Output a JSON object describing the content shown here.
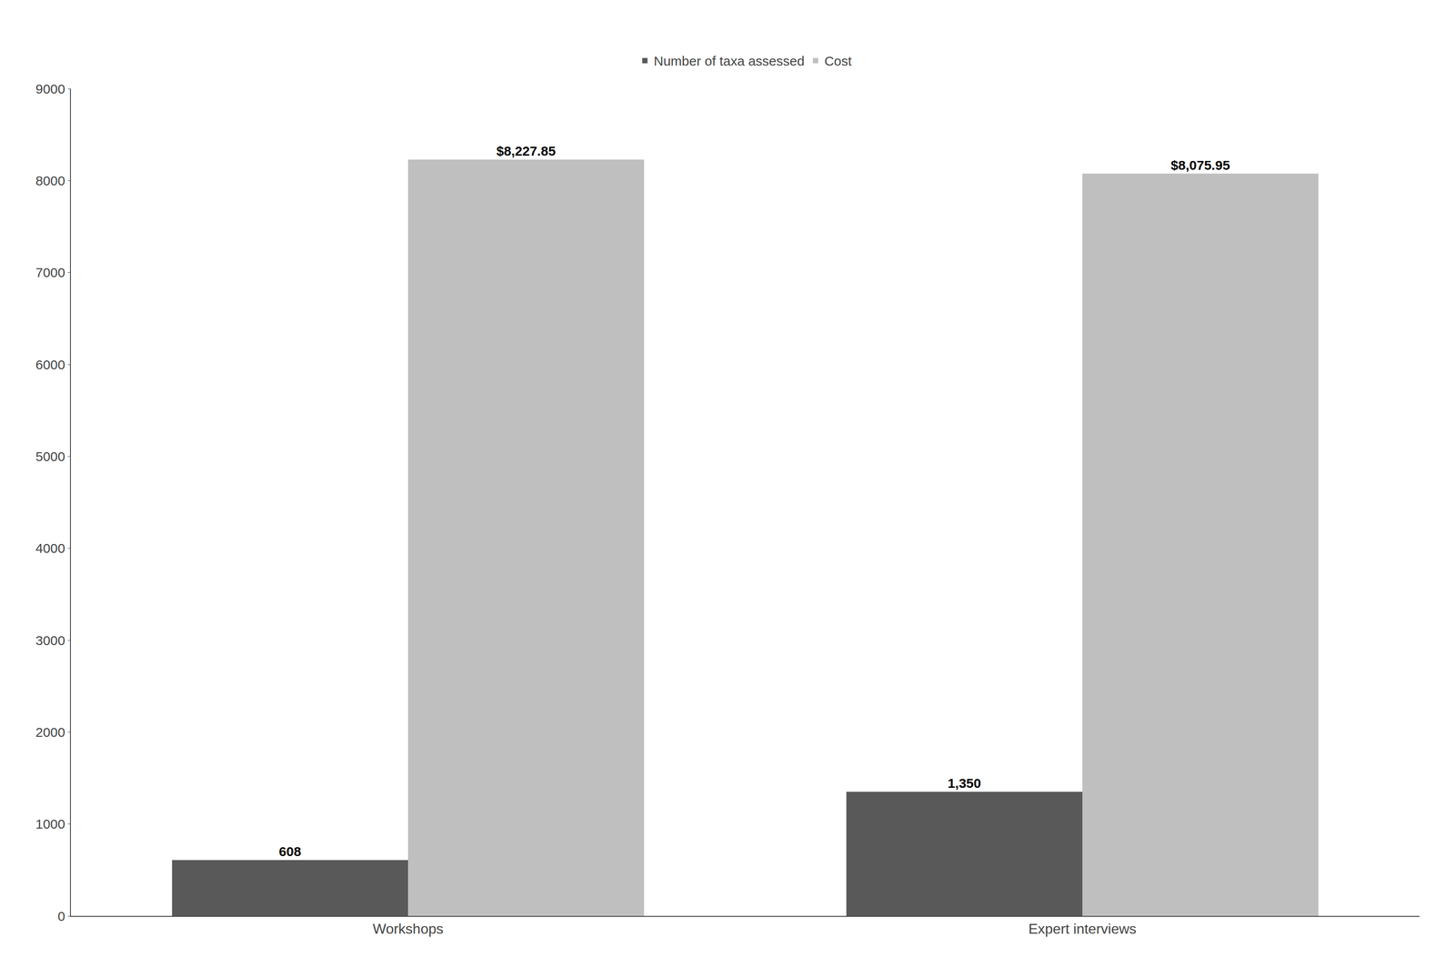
{
  "chart_data": {
    "type": "bar",
    "categories": [
      "Workshops",
      "Expert interviews"
    ],
    "series": [
      {
        "name": "Number of taxa assessed",
        "color": "#595959",
        "values": [
          608,
          1350
        ],
        "value_labels": [
          "608",
          "1,350"
        ]
      },
      {
        "name": "Cost",
        "color": "#bfbfbf",
        "values": [
          8227.85,
          8075.95
        ],
        "value_labels": [
          "$8,227.85",
          "$8,075.95"
        ]
      }
    ],
    "ylim": [
      0,
      9000
    ],
    "yticks": [
      0,
      1000,
      2000,
      3000,
      4000,
      5000,
      6000,
      7000,
      8000,
      9000
    ],
    "grid": false,
    "legend": "top",
    "data_labels": true
  }
}
